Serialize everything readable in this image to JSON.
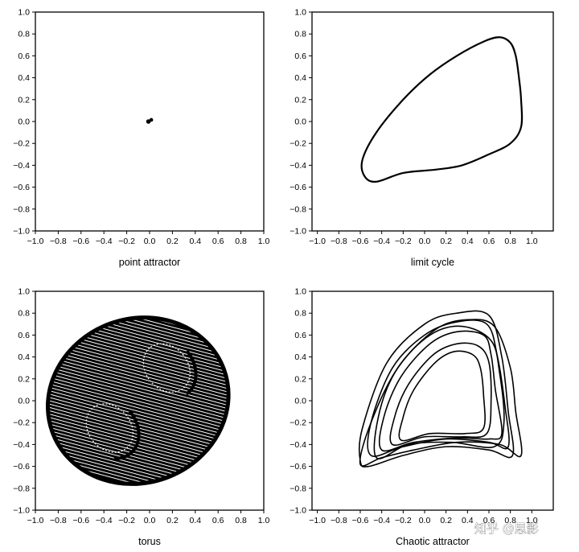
{
  "chart_data": [
    {
      "type": "line",
      "title": "point attractor",
      "xlim": [
        -1.0,
        1.0
      ],
      "ylim": [
        -1.0,
        1.0
      ],
      "x_ticks": [
        "−1.0",
        "−0.8",
        "−0.6",
        "−0.4",
        "−0.2",
        "0.0",
        "0.2",
        "0.4",
        "0.6",
        "0.8",
        "1.0"
      ],
      "y_ticks": [
        "−1.0",
        "−0.8",
        "−0.6",
        "−0.4",
        "−0.2",
        "0.0",
        "0.2",
        "0.4",
        "0.6",
        "0.8",
        "1.0"
      ],
      "series": [
        {
          "points": [
            [
              -0.02,
              0.0
            ],
            [
              0.0,
              0.02
            ],
            [
              0.02,
              0.01
            ],
            [
              0.01,
              -0.01
            ],
            [
              -0.01,
              -0.01
            ],
            [
              -0.02,
              0.0
            ]
          ]
        }
      ]
    },
    {
      "type": "line",
      "title": "limit cycle",
      "xlim": [
        -1.0,
        1.0
      ],
      "ylim": [
        -1.0,
        1.0
      ],
      "x_ticks": [
        "−1.0",
        "−0.8",
        "−0.6",
        "−0.4",
        "−0.2",
        "0.0",
        "0.2",
        "0.4",
        "0.6",
        "0.8",
        "1.0"
      ],
      "y_ticks": [
        "−1.0",
        "−0.8",
        "−0.6",
        "−0.4",
        "−0.2",
        "0.0",
        "0.2",
        "0.4",
        "0.6",
        "0.8",
        "1.0"
      ],
      "series": [
        {
          "points": [
            [
              -0.45,
              -0.55
            ],
            [
              -0.2,
              -0.47
            ],
            [
              0.1,
              -0.44
            ],
            [
              0.35,
              -0.4
            ],
            [
              0.6,
              -0.3
            ],
            [
              0.8,
              -0.2
            ],
            [
              0.9,
              -0.05
            ],
            [
              0.9,
              0.2
            ],
            [
              0.88,
              0.4
            ],
            [
              0.85,
              0.6
            ],
            [
              0.8,
              0.72
            ],
            [
              0.7,
              0.77
            ],
            [
              0.55,
              0.73
            ],
            [
              0.3,
              0.6
            ],
            [
              0.05,
              0.43
            ],
            [
              -0.2,
              0.2
            ],
            [
              -0.45,
              -0.1
            ],
            [
              -0.58,
              -0.35
            ],
            [
              -0.56,
              -0.5
            ],
            [
              -0.45,
              -0.55
            ]
          ]
        }
      ]
    },
    {
      "type": "scatter",
      "title": "torus",
      "xlim": [
        -1.0,
        1.0
      ],
      "ylim": [
        -1.0,
        1.0
      ],
      "x_ticks": [
        "−1.0",
        "−0.8",
        "−0.6",
        "−0.4",
        "−0.2",
        "0.0",
        "0.2",
        "0.4",
        "0.6",
        "0.8",
        "1.0"
      ],
      "y_ticks": [
        "−1.0",
        "−0.8",
        "−0.6",
        "−0.4",
        "−0.2",
        "0.0",
        "0.2",
        "0.4",
        "0.6",
        "0.8",
        "1.0"
      ],
      "torus": {
        "cx": -0.1,
        "cy": 0.0,
        "rx": 0.8,
        "ry": 0.75,
        "tilt_deg": 20,
        "inner": [
          [
            0.15,
            0.3,
            0.23,
            0.3
          ],
          [
            -0.35,
            -0.25,
            0.23,
            0.3
          ]
        ]
      }
    },
    {
      "type": "line",
      "title": "Chaotic attractor",
      "xlim": [
        -1.0,
        1.0
      ],
      "ylim": [
        -1.0,
        1.0
      ],
      "x_ticks": [
        "−1.0",
        "−0.8",
        "−0.6",
        "−0.4",
        "−0.2",
        "0.0",
        "0.2",
        "0.4",
        "0.6",
        "0.8",
        "1.0"
      ],
      "y_ticks": [
        "−1.0",
        "−0.8",
        "−0.6",
        "−0.4",
        "−0.2",
        "0.0",
        "0.2",
        "0.4",
        "0.6",
        "0.8",
        "1.0"
      ],
      "series": [
        {
          "points": [
            [
              -0.6,
              -0.55
            ],
            [
              -0.52,
              -0.6
            ],
            [
              -0.2,
              -0.5
            ],
            [
              0.2,
              -0.42
            ],
            [
              0.6,
              -0.45
            ],
            [
              0.82,
              -0.5
            ],
            [
              0.78,
              -0.1
            ],
            [
              0.72,
              0.4
            ],
            [
              0.6,
              0.78
            ],
            [
              0.3,
              0.8
            ],
            [
              0.0,
              0.7
            ],
            [
              -0.35,
              0.35
            ],
            [
              -0.58,
              -0.25
            ],
            [
              -0.6,
              -0.55
            ]
          ]
        },
        {
          "points": [
            [
              -0.5,
              -0.5
            ],
            [
              -0.2,
              -0.42
            ],
            [
              0.2,
              -0.35
            ],
            [
              0.6,
              -0.38
            ],
            [
              0.78,
              -0.42
            ],
            [
              0.75,
              -0.05
            ],
            [
              0.68,
              0.4
            ],
            [
              0.58,
              0.7
            ],
            [
              0.3,
              0.72
            ],
            [
              0.0,
              0.6
            ],
            [
              -0.3,
              0.3
            ],
            [
              -0.5,
              -0.2
            ],
            [
              -0.5,
              -0.5
            ]
          ]
        },
        {
          "points": [
            [
              -0.4,
              -0.45
            ],
            [
              -0.1,
              -0.38
            ],
            [
              0.3,
              -0.34
            ],
            [
              0.6,
              -0.35
            ],
            [
              0.72,
              -0.3
            ],
            [
              0.66,
              0.1
            ],
            [
              0.62,
              0.42
            ],
            [
              0.55,
              0.6
            ],
            [
              0.3,
              0.63
            ],
            [
              0.05,
              0.52
            ],
            [
              -0.22,
              0.22
            ],
            [
              -0.38,
              -0.15
            ],
            [
              -0.4,
              -0.45
            ]
          ]
        },
        {
          "points": [
            [
              -0.3,
              -0.4
            ],
            [
              0.0,
              -0.33
            ],
            [
              0.35,
              -0.33
            ],
            [
              0.58,
              -0.3
            ],
            [
              0.62,
              0.0
            ],
            [
              0.6,
              0.35
            ],
            [
              0.5,
              0.5
            ],
            [
              0.3,
              0.52
            ],
            [
              0.08,
              0.42
            ],
            [
              -0.15,
              0.15
            ],
            [
              -0.28,
              -0.15
            ],
            [
              -0.3,
              -0.4
            ]
          ]
        },
        {
          "points": [
            [
              -0.22,
              -0.36
            ],
            [
              0.05,
              -0.3
            ],
            [
              0.38,
              -0.3
            ],
            [
              0.55,
              -0.25
            ],
            [
              0.55,
              0.05
            ],
            [
              0.52,
              0.3
            ],
            [
              0.45,
              0.42
            ],
            [
              0.28,
              0.45
            ],
            [
              0.1,
              0.35
            ],
            [
              -0.1,
              0.1
            ],
            [
              -0.2,
              -0.15
            ],
            [
              -0.22,
              -0.36
            ]
          ]
        },
        {
          "points": [
            [
              -0.6,
              -0.58
            ],
            [
              -0.4,
              -0.52
            ],
            [
              -0.1,
              -0.45
            ],
            [
              0.3,
              -0.38
            ],
            [
              0.7,
              -0.4
            ],
            [
              0.9,
              -0.5
            ],
            [
              0.85,
              -0.1
            ],
            [
              0.8,
              0.3
            ],
            [
              0.65,
              0.68
            ],
            [
              0.4,
              0.74
            ],
            [
              0.1,
              0.65
            ],
            [
              -0.25,
              0.3
            ],
            [
              -0.5,
              -0.2
            ],
            [
              -0.6,
              -0.58
            ]
          ]
        },
        {
          "points": [
            [
              -0.45,
              -0.52
            ],
            [
              -0.15,
              -0.4
            ],
            [
              0.25,
              -0.38
            ],
            [
              0.65,
              -0.42
            ],
            [
              0.74,
              -0.2
            ],
            [
              0.7,
              0.25
            ],
            [
              0.62,
              0.55
            ],
            [
              0.35,
              0.68
            ],
            [
              0.05,
              0.6
            ],
            [
              -0.25,
              0.3
            ],
            [
              -0.42,
              -0.1
            ],
            [
              -0.45,
              -0.52
            ]
          ]
        }
      ]
    }
  ],
  "watermark": "知乎 @思影"
}
